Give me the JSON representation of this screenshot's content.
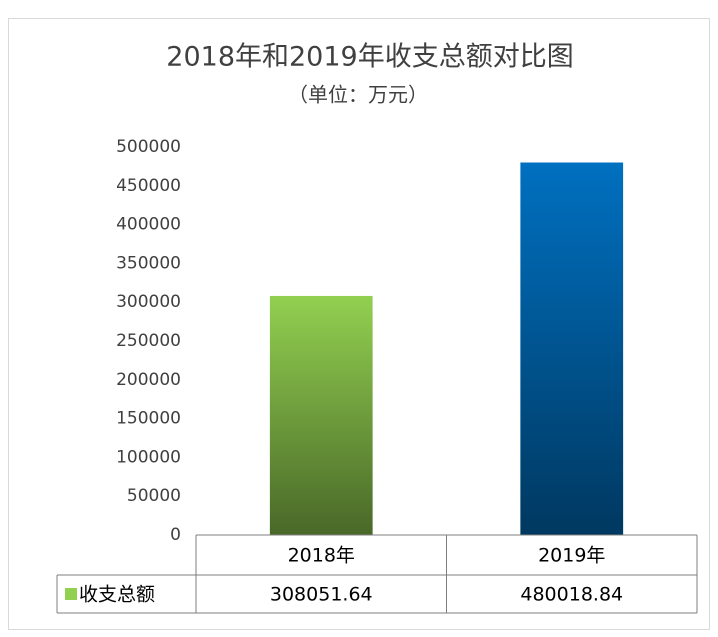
{
  "chart_data": {
    "type": "bar",
    "title": "2018年和2019年收支总额对比图",
    "subtitle": "（单位：万元）",
    "categories": [
      "2018年",
      "2019年"
    ],
    "series": [
      {
        "name": "收支总额",
        "color": "#92d050",
        "point_colors": [
          "#92d050",
          "#0070c0"
        ],
        "values": [
          308051.64,
          480018.84
        ]
      }
    ],
    "ylim": [
      0,
      500000
    ],
    "yticks": [
      0,
      50000,
      100000,
      150000,
      200000,
      250000,
      300000,
      350000,
      400000,
      450000,
      500000
    ],
    "grid": false,
    "data_table": true
  }
}
